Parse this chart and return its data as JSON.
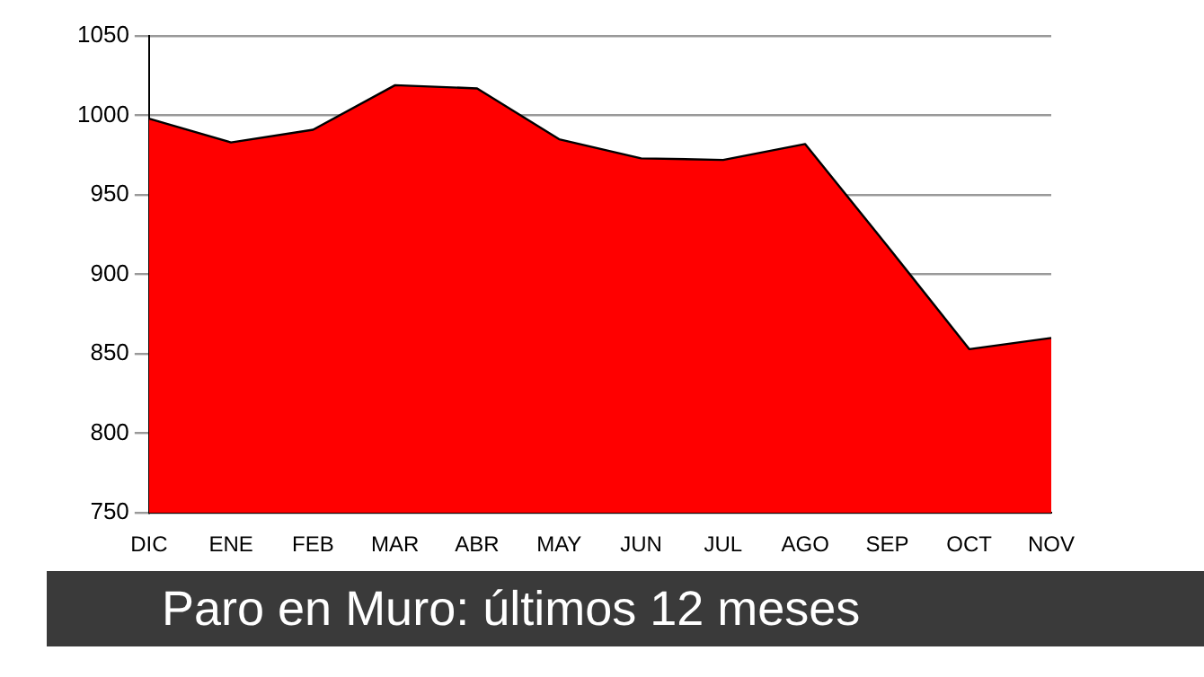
{
  "chart_data": {
    "type": "area",
    "title": "Paro en Muro: últimos 12 meses",
    "categories": [
      "DIC",
      "ENE",
      "FEB",
      "MAR",
      "ABR",
      "MAY",
      "JUN",
      "JUL",
      "AGO",
      "SEP",
      "OCT",
      "NOV"
    ],
    "series": [
      {
        "color": "#ff0000",
        "values": [
          998,
          983,
          991,
          1019,
          1017,
          985,
          973,
          972,
          982,
          918,
          853,
          860
        ]
      }
    ],
    "ylim": [
      750,
      1050
    ],
    "yticks": [
      750,
      800,
      850,
      900,
      950,
      1000,
      1050
    ],
    "grid": "y",
    "legend": false
  }
}
